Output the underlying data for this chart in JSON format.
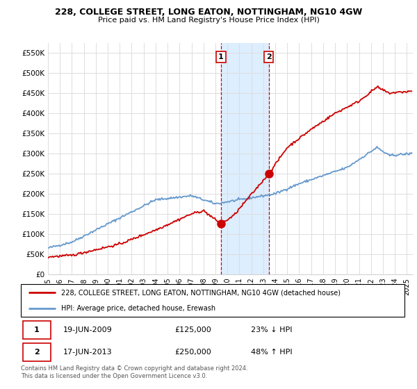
{
  "title": "228, COLLEGE STREET, LONG EATON, NOTTINGHAM, NG10 4GW",
  "subtitle": "Price paid vs. HM Land Registry's House Price Index (HPI)",
  "ylim": [
    0,
    575000
  ],
  "yticks": [
    0,
    50000,
    100000,
    150000,
    200000,
    250000,
    300000,
    350000,
    400000,
    450000,
    500000,
    550000
  ],
  "xlim_start": 1995.0,
  "xlim_end": 2025.5,
  "sale1_x": 2009.463,
  "sale1_y": 125000,
  "sale1_label": "1",
  "sale2_x": 2013.463,
  "sale2_y": 250000,
  "sale2_label": "2",
  "shade_x1": 2009.463,
  "shade_x2": 2013.463,
  "legend_line1": "228, COLLEGE STREET, LONG EATON, NOTTINGHAM, NG10 4GW (detached house)",
  "legend_line2": "HPI: Average price, detached house, Erewash",
  "table_row1": [
    "1",
    "19-JUN-2009",
    "£125,000",
    "23% ↓ HPI"
  ],
  "table_row2": [
    "2",
    "17-JUN-2013",
    "£250,000",
    "48% ↑ HPI"
  ],
  "footer": "Contains HM Land Registry data © Crown copyright and database right 2024.\nThis data is licensed under the Open Government Licence v3.0.",
  "line_color_red": "#cc0000",
  "line_color_blue": "#6699cc",
  "shade_color": "#ddeeff",
  "sale_dot_color": "#cc0000",
  "grid_color": "#dddddd",
  "background_color": "#ffffff"
}
